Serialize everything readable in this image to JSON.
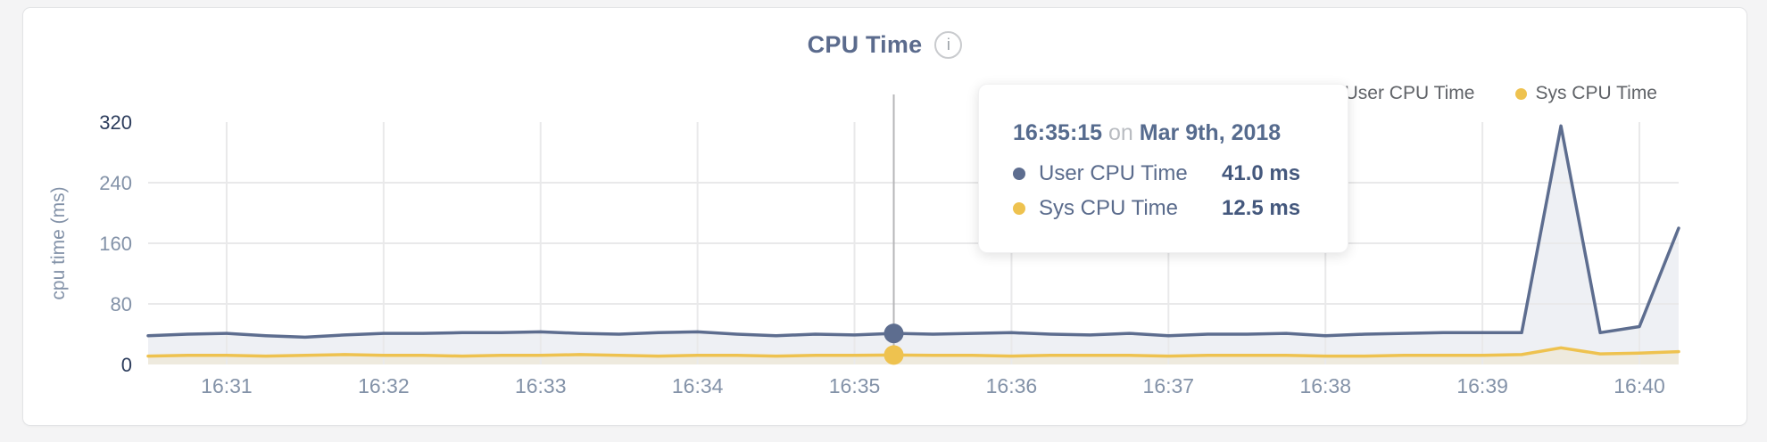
{
  "header": {
    "title": "CPU Time",
    "info_glyph": "i"
  },
  "legend": {
    "items": [
      {
        "label": "User CPU Time",
        "color": "#5d6d8f"
      },
      {
        "label": "Sys CPU Time",
        "color": "#eec24f"
      }
    ]
  },
  "tooltip": {
    "time": "16:35:15",
    "connector": "on",
    "date": "Mar 9th, 2018",
    "rows": [
      {
        "label": "User CPU Time",
        "value": "41.0 ms",
        "color": "#5d6d8f"
      },
      {
        "label": "Sys CPU Time",
        "value": "12.5 ms",
        "color": "#eec24f"
      }
    ]
  },
  "chart_data": {
    "type": "area",
    "title": "CPU Time",
    "ylabel": "cpu time (ms)",
    "ylim": [
      0,
      320
    ],
    "y_ticks": [
      0,
      80,
      160,
      240,
      320
    ],
    "y_grid": [
      80,
      160,
      240
    ],
    "y_ticks_dark": [
      0,
      320
    ],
    "x_ticks": [
      "16:31",
      "16:32",
      "16:33",
      "16:34",
      "16:35",
      "16:36",
      "16:37",
      "16:38",
      "16:39",
      "16:40"
    ],
    "x_tick_offsets_seconds": [
      30,
      90,
      150,
      210,
      270,
      330,
      390,
      450,
      510,
      570
    ],
    "start_time": "16:30:30",
    "end_time": "16:40:15",
    "date": "Mar 9th, 2018",
    "interval_seconds": 15,
    "legend_position": "top-right",
    "grid": true,
    "series": [
      {
        "name": "User CPU Time",
        "unit": "ms",
        "color": "#5d6d8f",
        "fill": "#eef0f4",
        "values": [
          38,
          40,
          41,
          38,
          36,
          39,
          41,
          41,
          42,
          42,
          43,
          41,
          40,
          42,
          43,
          40,
          38,
          40,
          39,
          41,
          40,
          41,
          42,
          40,
          39,
          41,
          38,
          40,
          40,
          41,
          38,
          40,
          41,
          42,
          42,
          42,
          315,
          42,
          50,
          180
        ]
      },
      {
        "name": "Sys CPU Time",
        "unit": "ms",
        "color": "#eec24f",
        "fill": "rgba(238,194,80,0.13)",
        "values": [
          11,
          12,
          12,
          11,
          12,
          13,
          12,
          12,
          11,
          12,
          12,
          13,
          12,
          11,
          12,
          12,
          11,
          12,
          12,
          12.5,
          12,
          12,
          11,
          12,
          12,
          12,
          11,
          12,
          12,
          12,
          11,
          11,
          12,
          12,
          12,
          13,
          22,
          14,
          15,
          17
        ]
      }
    ],
    "hover": {
      "time": "16:35:15",
      "offset_seconds": 285,
      "user_cpu_ms": 41.0,
      "sys_cpu_ms": 12.5
    },
    "style": {
      "grid_color": "#e9e9ea",
      "tick_color": "#8392a8",
      "tick_color_dark": "#2c3c5c",
      "crosshair_color": "#b6b6b8"
    }
  }
}
